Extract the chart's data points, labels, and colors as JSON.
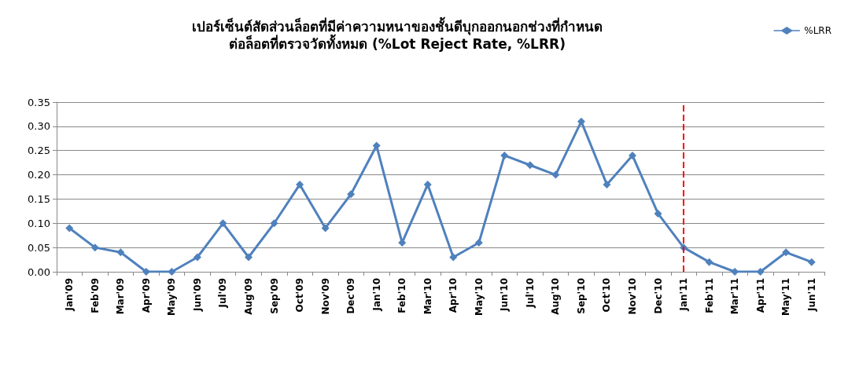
{
  "chart_data": {
    "type": "line",
    "title": "เปอร์เซ็นต์สัดส่วนล็อตที่มีค่าความหนาของชั้นดีบุกออกนอกช่วงที่กำหนด\nต่อล็อตที่ตรวจวัดทั้งหมด (%Lot Reject Rate, %LRR)",
    "categories": [
      "Jan'09",
      "Feb'09",
      "Mar'09",
      "Apr'09",
      "May'09",
      "Jun'09",
      "Jul'09",
      "Aug'09",
      "Sep'09",
      "Oct'09",
      "Nov'09",
      "Dec'09",
      "Jan'10",
      "Feb'10",
      "Mar'10",
      "Apr'10",
      "May'10",
      "Jun'10",
      "Jul'10",
      "Aug'10",
      "Sep'10",
      "Oct'10",
      "Nov'10",
      "Dec'10",
      "Jan'11",
      "Feb'11",
      "Mar'11",
      "Apr'11",
      "May'11",
      "Jun'11"
    ],
    "series": [
      {
        "name": "%LRR",
        "color": "#4f81bd",
        "values": [
          0.09,
          0.05,
          0.04,
          0,
          0,
          0.03,
          0.1,
          0.03,
          0.1,
          0.18,
          0.09,
          0.16,
          0.26,
          0.06,
          0.18,
          0.03,
          0.06,
          0.24,
          0.22,
          0.2,
          0.31,
          0.18,
          0.24,
          0.12,
          0.05,
          0.02,
          0,
          0,
          0.04,
          0.02
        ]
      }
    ],
    "ylim": [
      0,
      0.35
    ],
    "yticks": [
      {
        "value": 0,
        "label": "0.00"
      },
      {
        "value": 0.05,
        "label": "0.05"
      },
      {
        "value": 0.1,
        "label": "0.10"
      },
      {
        "value": 0.15,
        "label": "0.15"
      },
      {
        "value": 0.2,
        "label": "0.20"
      },
      {
        "value": 0.25,
        "label": "0.25"
      },
      {
        "value": 0.3,
        "label": "0.30"
      },
      {
        "value": 0.35,
        "label": "0.35"
      }
    ],
    "ref_lines": [
      {
        "axis": "x",
        "value": "Jan'11",
        "color": "#ff0000",
        "line_style": "dashed"
      }
    ],
    "grid": "y",
    "legend": "top right",
    "marker": "diamond",
    "line_style": "solid"
  }
}
